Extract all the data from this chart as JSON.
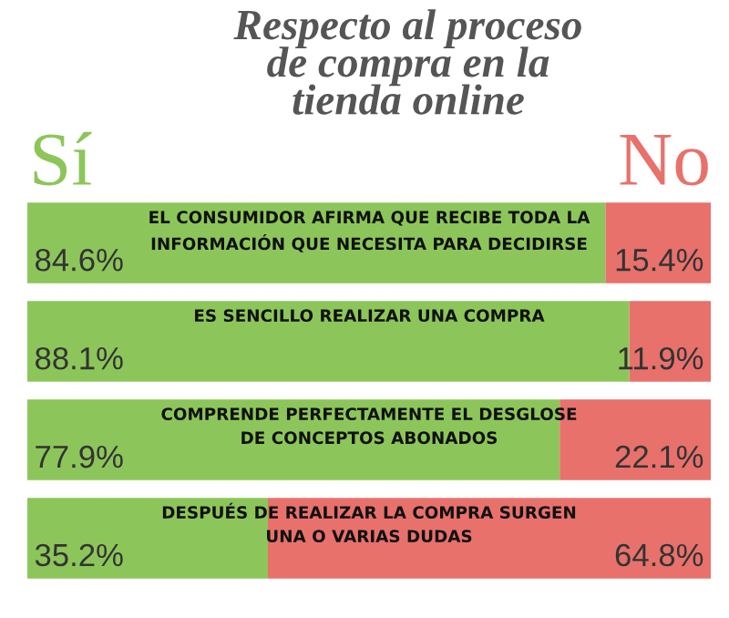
{
  "chart_data": {
    "type": "bar",
    "orientation": "horizontal",
    "stacked": true,
    "legend": "top",
    "title": "Respecto al proceso\nde compra en la\ntienda online",
    "categories": [
      "EL CONSUMIDOR AFIRMA QUE RECIBE TODA LA\nINFORMACIÓN QUE NECESITA PARA DECIDIRSE",
      "ES SENCILLO REALIZAR UNA COMPRA",
      "COMPRENDE PERFECTAMENTE EL DESGLOSE\nDE CONCEPTOS ABONADOS",
      "DESPUÉS DE REALIZAR LA COMPRA SURGEN\nUNA O VARIAS DUDAS"
    ],
    "series": [
      {
        "name": "Sí",
        "color": "#8cc65a",
        "values": [
          84.6,
          88.1,
          77.9,
          35.2
        ],
        "value_labels": [
          "84.6%",
          "88.1%",
          "77.9%",
          "35.2%"
        ]
      },
      {
        "name": "No",
        "color": "#e8716c",
        "values": [
          15.4,
          11.9,
          22.1,
          64.8
        ],
        "value_labels": [
          "15.4%",
          "11.9%",
          "22.1%",
          "64.8%"
        ]
      }
    ]
  }
}
